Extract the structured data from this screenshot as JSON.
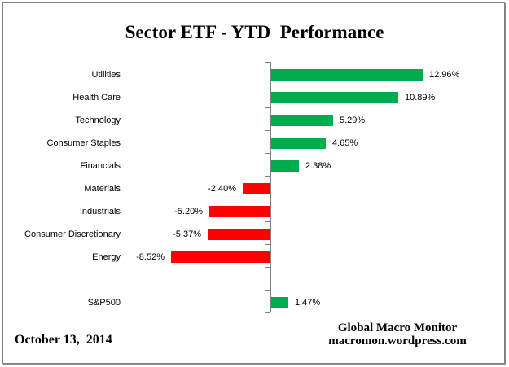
{
  "title": "Sector ETF - YTD  Performance",
  "footer": {
    "date": "October 13,  2014",
    "attribution": [
      "Global Macro Monitor",
      "macromon.wordpress.com"
    ]
  },
  "chart_data": {
    "type": "bar",
    "orientation": "horizontal",
    "title": "Sector ETF - YTD  Performance",
    "categories": [
      "Utilities",
      "Health Care",
      "Technology",
      "Consumer Staples",
      "Financials",
      "Materials",
      "Industrials",
      "Consumer Discretionary",
      "Energy",
      "",
      "S&P500"
    ],
    "values": [
      12.96,
      10.89,
      5.29,
      4.65,
      2.38,
      -2.4,
      -5.2,
      -5.37,
      -8.52,
      null,
      1.47
    ],
    "value_labels": [
      "12.96%",
      "10.89%",
      "5.29%",
      "4.65%",
      "2.38%",
      "-2.40%",
      "-5.20%",
      "-5.37%",
      "-8.52%",
      "",
      "1.47%"
    ],
    "positive_color": "#00AC4E",
    "negative_color": "#FF0000",
    "axis_color": "#808080",
    "baseline": 0,
    "xlim": [
      -10.5,
      14.5
    ],
    "grid": false,
    "legend": false
  }
}
